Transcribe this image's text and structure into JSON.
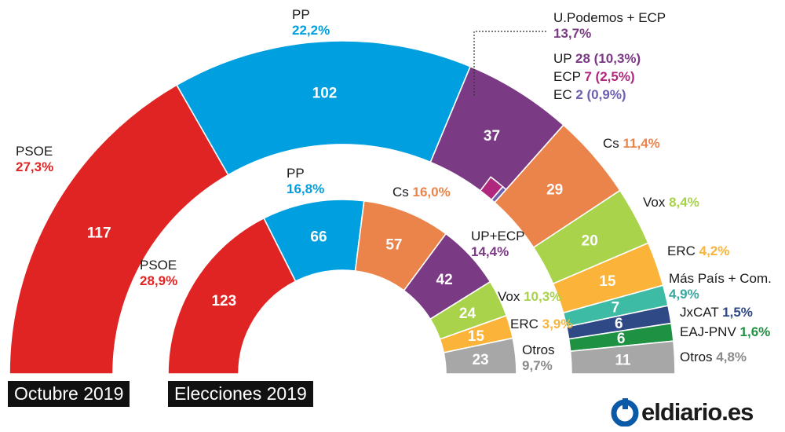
{
  "chart_data": [
    {
      "type": "parliament-semicircle",
      "title": "Octubre 2019",
      "parties": [
        {
          "name": "PSOE",
          "seats": 117,
          "pct": "27,3%",
          "color": "#e02424"
        },
        {
          "name": "PP",
          "seats": 102,
          "pct": "22,2%",
          "color": "#009fdf"
        },
        {
          "name": "U.Podemos + ECP",
          "seats": 37,
          "pct": "13,7%",
          "color": "#7b3a84",
          "breakdown": [
            {
              "name": "UP",
              "seats": 28,
              "pct": "10,3%",
              "color": "#7b3a84"
            },
            {
              "name": "ECP",
              "seats": 7,
              "pct": "2,5%",
              "color": "#b0287e"
            },
            {
              "name": "EC",
              "seats": 2,
              "pct": "0,9%",
              "color": "#6e5fb0"
            }
          ]
        },
        {
          "name": "Cs",
          "seats": 29,
          "pct": "11,4%",
          "color": "#eb844a"
        },
        {
          "name": "Vox",
          "seats": 20,
          "pct": "8,4%",
          "color": "#a8d34b"
        },
        {
          "name": "ERC",
          "seats": 15,
          "pct": "4,2%",
          "color": "#fbb33a"
        },
        {
          "name": "Más País + Com.",
          "seats": 7,
          "pct": "4,9%",
          "color": "#3dbba4"
        },
        {
          "name": "JxCAT",
          "seats": 6,
          "pct": "1,5%",
          "color": "#2f4886"
        },
        {
          "name": "EAJ-PNV",
          "seats": 6,
          "pct": "1,6%",
          "color": "#1e9142"
        },
        {
          "name": "Otros",
          "seats": 11,
          "pct": "4,8%",
          "color": "#a7a7a7"
        }
      ]
    },
    {
      "type": "parliament-semicircle",
      "title": "Elecciones 2019",
      "parties": [
        {
          "name": "PSOE",
          "seats": 123,
          "pct": "28,9%",
          "color": "#e02424"
        },
        {
          "name": "PP",
          "seats": 66,
          "pct": "16,8%",
          "color": "#009fdf"
        },
        {
          "name": "Cs",
          "seats": 57,
          "pct": "16,0%",
          "color": "#eb844a"
        },
        {
          "name": "UP+ECP",
          "seats": 42,
          "pct": "14,4%",
          "color": "#7b3a84"
        },
        {
          "name": "Vox",
          "seats": 24,
          "pct": "10,3%",
          "color": "#a8d34b"
        },
        {
          "name": "ERC",
          "seats": 15,
          "pct": "3,9%",
          "color": "#fbb33a"
        },
        {
          "name": "Otros",
          "seats": 23,
          "pct": "9,7%",
          "color": "#a7a7a7"
        }
      ]
    }
  ],
  "brand": {
    "name": "eldiario.es",
    "color": "#0a5aa8"
  }
}
